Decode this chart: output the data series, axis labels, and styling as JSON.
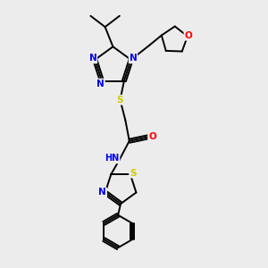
{
  "bg_color": "#ececec",
  "atom_colors": {
    "C": "#000000",
    "N": "#0000ee",
    "S": "#cccc00",
    "O": "#ff0000",
    "H": "#555555"
  },
  "bond_color": "#000000"
}
